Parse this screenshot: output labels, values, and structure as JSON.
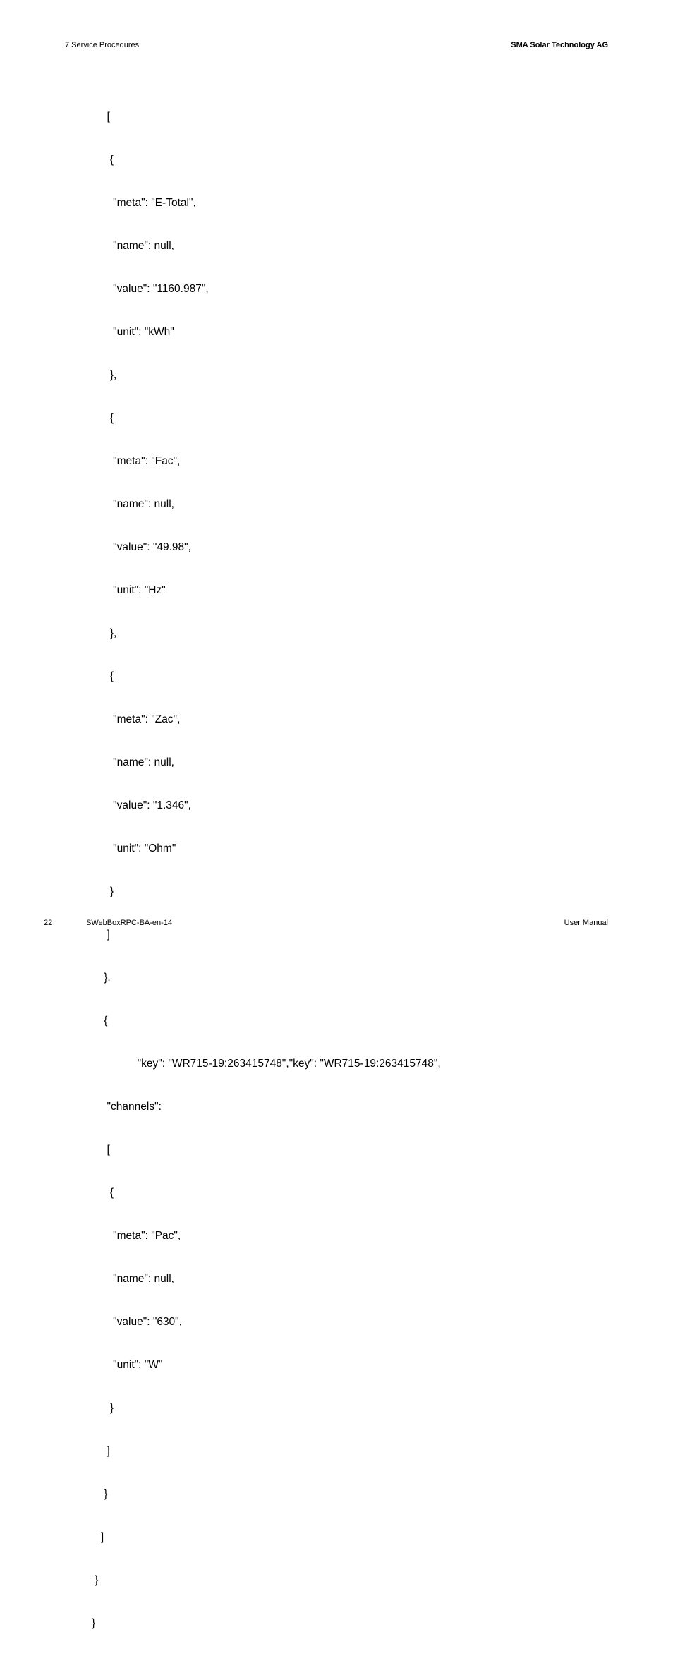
{
  "header": {
    "left": "7  Service Procedures",
    "right": "SMA Solar Technology AG"
  },
  "footer": {
    "page": "22",
    "doc": "SWebBoxRPC-BA-en-14",
    "right": "User Manual"
  },
  "code": {
    "lines": [
      "     [",
      "      {",
      "       \"meta\": \"E-Total\",",
      "       \"name\": null,",
      "       \"value\": \"1160.987\",",
      "       \"unit\": \"kWh\"",
      "      },",
      "      {",
      "       \"meta\": \"Fac\",",
      "       \"name\": null,",
      "       \"value\": \"49.98\",",
      "       \"unit\": \"Hz\"",
      "      },",
      "      {",
      "       \"meta\": \"Zac\",",
      "       \"name\": null,",
      "       \"value\": \"1.346\",",
      "       \"unit\": \"Ohm\"",
      "      }",
      "     ]",
      "    },",
      "    {",
      "               \"key\": \"WR715-19:263415748\",\"key\": \"WR715-19:263415748\",",
      "     \"channels\":",
      "     [",
      "      {",
      "       \"meta\": \"Pac\",",
      "       \"name\": null,",
      "       \"value\": \"630\",",
      "       \"unit\": \"W\"",
      "      }",
      "     ]",
      "    }",
      "   ]",
      " }",
      "}"
    ]
  }
}
